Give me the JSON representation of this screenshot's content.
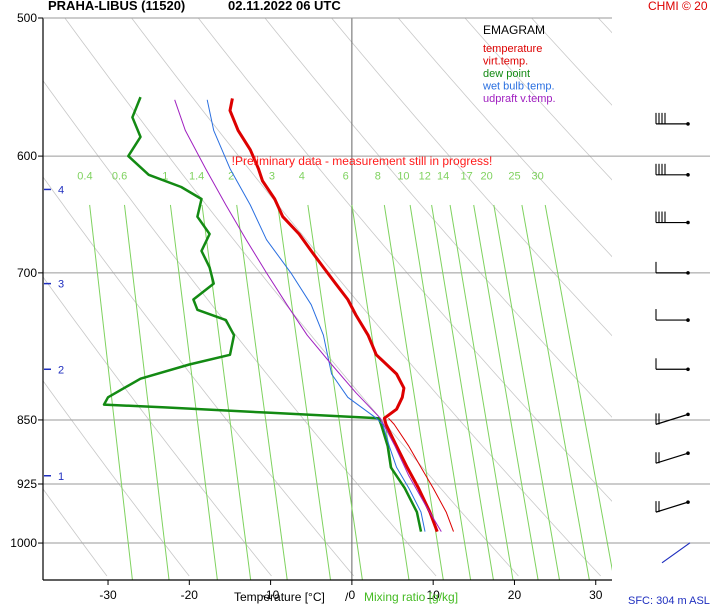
{
  "header": {
    "station": "PRAHA-LIBUS (11520)",
    "datetime": "02.11.2022 06 UTC",
    "credit": "CHMI © 20"
  },
  "warning": "!Preliminary data - measurement still in progress!",
  "footer": {
    "xlabel_temp": "Temperature [°C]",
    "separator": "/",
    "xlabel_mix": "Mixing ratio [g/kg]",
    "surface": "SFC: 304 m ASL"
  },
  "colors": {
    "temperature": "#dd0000",
    "virt_temp": "#dd0000",
    "dew_point": "#138a13",
    "wet_bulb": "#2a6fe0",
    "updraft": "#a020c0",
    "mixing_ratio": "#7fd25f",
    "axis": "#000000",
    "grid": "#9a9a9a",
    "dry_adiabat": "#c8c8c8",
    "height_marker": "#1f2fbf"
  },
  "chart_data": {
    "type": "line",
    "title": "EMAGRAM",
    "x_axis": {
      "min": -38,
      "max": 32,
      "ticks": [
        -30,
        -20,
        -10,
        0,
        10,
        20,
        30
      ]
    },
    "y_axis": {
      "scale": "log-pressure",
      "min": 500,
      "max": 1050,
      "ticks": [
        500,
        600,
        700,
        850,
        925,
        1000
      ]
    },
    "height_markers": [
      {
        "label": "1",
        "p": 915
      },
      {
        "label": "2",
        "p": 795
      },
      {
        "label": "3",
        "p": 710
      },
      {
        "label": "4",
        "p": 627
      }
    ],
    "mixing_ratio_labels": [
      "0.4",
      "0.6",
      "1",
      "1.4",
      "2",
      "3",
      "4",
      "6",
      "8",
      "10",
      "12",
      "14",
      "17",
      "20",
      "25",
      "30"
    ],
    "legend": [
      "temperature",
      "virt.temp.",
      "dew point",
      "wet bulb temp.",
      "udpraft v.temp."
    ],
    "series": [
      {
        "name": "temperature",
        "points": [
          [
            10.5,
            985
          ],
          [
            9.6,
            960
          ],
          [
            8.2,
            930
          ],
          [
            6.8,
            905
          ],
          [
            5.5,
            880
          ],
          [
            4.2,
            855
          ],
          [
            4.0,
            848
          ],
          [
            5.5,
            838
          ],
          [
            6.2,
            825
          ],
          [
            6.4,
            815
          ],
          [
            5.5,
            800
          ],
          [
            3.0,
            780
          ],
          [
            2.0,
            760
          ],
          [
            0.5,
            740
          ],
          [
            -0.5,
            725
          ],
          [
            -2.0,
            710
          ],
          [
            -3.5,
            695
          ],
          [
            -5.0,
            680
          ],
          [
            -6.5,
            665
          ],
          [
            -8.5,
            650
          ],
          [
            -9.5,
            635
          ],
          [
            -11.0,
            620
          ],
          [
            -11.5,
            610
          ],
          [
            -12.5,
            595
          ],
          [
            -14.0,
            580
          ],
          [
            -15.0,
            565
          ],
          [
            -14.7,
            556
          ]
        ]
      },
      {
        "name": "virt.temp.",
        "points": [
          [
            12.5,
            985
          ],
          [
            11.6,
            960
          ],
          [
            10.0,
            930
          ],
          [
            8.5,
            905
          ],
          [
            7.0,
            880
          ],
          [
            5.2,
            855
          ],
          [
            4.5,
            848
          ]
        ]
      },
      {
        "name": "dew point",
        "points": [
          [
            8.5,
            985
          ],
          [
            8.0,
            960
          ],
          [
            6.5,
            930
          ],
          [
            4.8,
            905
          ],
          [
            4.4,
            880
          ],
          [
            3.6,
            855
          ],
          [
            3.3,
            848
          ],
          [
            -10.0,
            842
          ],
          [
            -23.0,
            836
          ],
          [
            -30.5,
            833
          ],
          [
            -30.0,
            825
          ],
          [
            -26.0,
            805
          ],
          [
            -20.0,
            790
          ],
          [
            -15.0,
            780
          ],
          [
            -14.5,
            760
          ],
          [
            -15.5,
            745
          ],
          [
            -19.0,
            735
          ],
          [
            -19.5,
            725
          ],
          [
            -17.0,
            710
          ],
          [
            -17.5,
            695
          ],
          [
            -18.5,
            680
          ],
          [
            -17.5,
            665
          ],
          [
            -19.0,
            650
          ],
          [
            -18.5,
            635
          ],
          [
            -21.0,
            625
          ],
          [
            -25.0,
            615
          ],
          [
            -27.5,
            600
          ],
          [
            -26.0,
            585
          ],
          [
            -27.0,
            570
          ],
          [
            -26.0,
            555
          ]
        ]
      },
      {
        "name": "wet bulb temp.",
        "points": [
          [
            9.0,
            985
          ],
          [
            8.5,
            960
          ],
          [
            7.0,
            930
          ],
          [
            5.5,
            905
          ],
          [
            4.6,
            880
          ],
          [
            3.8,
            855
          ],
          [
            3.0,
            848
          ],
          [
            -0.5,
            825
          ],
          [
            -2.5,
            800
          ],
          [
            -3.0,
            780
          ],
          [
            -3.5,
            760
          ],
          [
            -5.0,
            730
          ],
          [
            -7.5,
            700
          ],
          [
            -10.5,
            670
          ],
          [
            -12.5,
            640
          ],
          [
            -15.0,
            610
          ],
          [
            -17.0,
            580
          ],
          [
            -17.8,
            557
          ]
        ]
      },
      {
        "name": "udpraft v.temp.",
        "points": [
          [
            11.0,
            985
          ],
          [
            9.0,
            950
          ],
          [
            7.0,
            915
          ],
          [
            5.3,
            880
          ],
          [
            3.5,
            848
          ],
          [
            0.5,
            820
          ],
          [
            -2.5,
            790
          ],
          [
            -5.5,
            760
          ],
          [
            -8.0,
            730
          ],
          [
            -10.5,
            700
          ],
          [
            -13.0,
            670
          ],
          [
            -15.5,
            640
          ],
          [
            -18.0,
            610
          ],
          [
            -20.5,
            580
          ],
          [
            -21.8,
            557
          ]
        ]
      }
    ],
    "wind_barbs": [
      {
        "p": 575
      },
      {
        "p": 615
      },
      {
        "p": 655
      },
      {
        "p": 700
      },
      {
        "p": 745
      },
      {
        "p": 795
      },
      {
        "p": 855
      },
      {
        "p": 900
      },
      {
        "p": 960
      },
      {
        "p": 1005
      }
    ]
  }
}
